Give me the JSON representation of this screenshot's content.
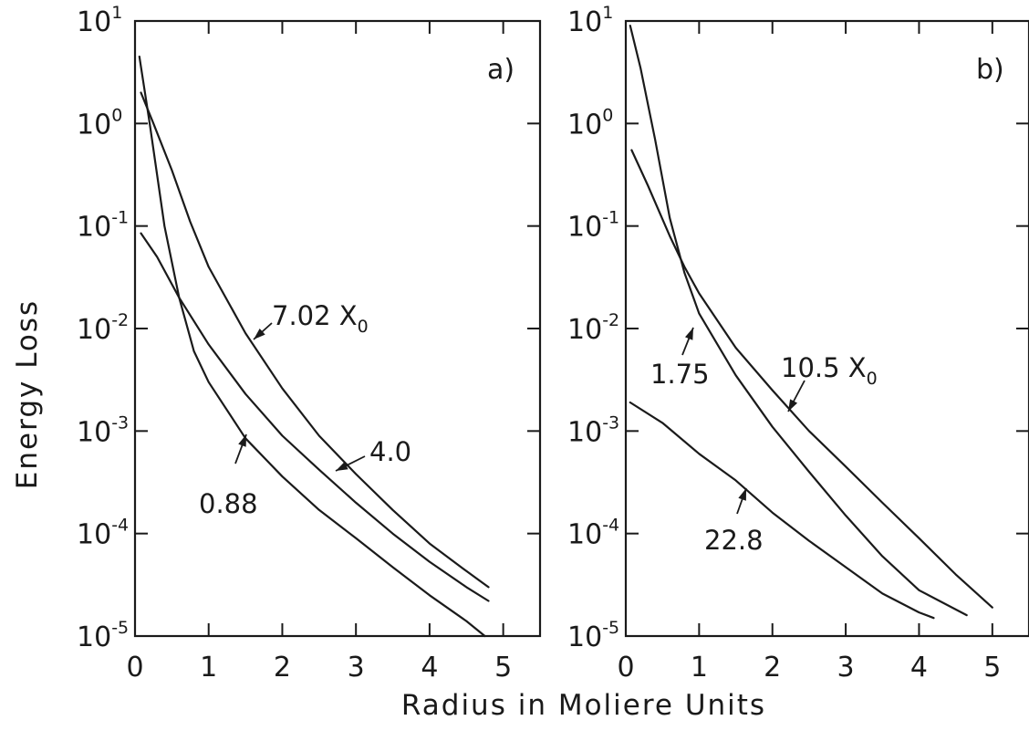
{
  "ylabel": "Energy Loss",
  "xlabel": "Radius in Moliere Units",
  "chart_data": [
    {
      "type": "line",
      "panel_label": "a)",
      "xlim": [
        0,
        5.5
      ],
      "ylim": [
        1e-05,
        10
      ],
      "yscale": "log",
      "xticks": [
        "0",
        "1",
        "2",
        "3",
        "4",
        "5"
      ],
      "yticks": [
        {
          "base": "10",
          "exp": "1"
        },
        {
          "base": "10",
          "exp": "0"
        },
        {
          "base": "10",
          "exp": "-1"
        },
        {
          "base": "10",
          "exp": "-2"
        },
        {
          "base": "10",
          "exp": "-3"
        },
        {
          "base": "10",
          "exp": "-4"
        },
        {
          "base": "10",
          "exp": "-5"
        }
      ],
      "grid": false,
      "series": [
        {
          "name": "7.02 X0",
          "label_main": "7.02 X",
          "label_sub": "0",
          "x": [
            0.08,
            0.25,
            0.5,
            0.75,
            1.0,
            1.5,
            2.0,
            2.5,
            3.0,
            3.5,
            4.0,
            4.5,
            4.8
          ],
          "y": [
            2.0,
            1.0,
            0.35,
            0.11,
            0.04,
            0.009,
            0.0026,
            0.0009,
            0.00038,
            0.00017,
            8e-05,
            4.3e-05,
            3e-05
          ]
        },
        {
          "name": "4.0",
          "label_main": "4.0",
          "label_sub": "",
          "x": [
            0.08,
            0.3,
            0.6,
            1.0,
            1.5,
            2.0,
            2.5,
            3.0,
            3.5,
            4.0,
            4.5,
            4.8
          ],
          "y": [
            0.085,
            0.05,
            0.02,
            0.007,
            0.0023,
            0.0009,
            0.00042,
            0.0002,
            0.0001,
            5.3e-05,
            3e-05,
            2.2e-05
          ]
        },
        {
          "name": "0.88",
          "label_main": "0.88",
          "label_sub": "",
          "x": [
            0.06,
            0.2,
            0.4,
            0.6,
            0.8,
            1.0,
            1.5,
            2.0,
            2.5,
            3.0,
            3.5,
            4.0,
            4.5,
            4.75
          ],
          "y": [
            4.5,
            1.0,
            0.1,
            0.02,
            0.006,
            0.003,
            0.00085,
            0.00036,
            0.00017,
            9e-05,
            4.7e-05,
            2.5e-05,
            1.4e-05,
            1e-05
          ]
        }
      ]
    },
    {
      "type": "line",
      "panel_label": "b)",
      "xlim": [
        0,
        5.5
      ],
      "ylim": [
        1e-05,
        10
      ],
      "yscale": "log",
      "xticks": [
        "0",
        "1",
        "2",
        "3",
        "4",
        "5"
      ],
      "yticks": [
        {
          "base": "10",
          "exp": "1"
        },
        {
          "base": "10",
          "exp": "0"
        },
        {
          "base": "10",
          "exp": "-1"
        },
        {
          "base": "10",
          "exp": "-2"
        },
        {
          "base": "10",
          "exp": "-3"
        },
        {
          "base": "10",
          "exp": "-4"
        },
        {
          "base": "10",
          "exp": "-5"
        }
      ],
      "grid": false,
      "series": [
        {
          "name": "10.5 X0",
          "label_main": "10.5 X",
          "label_sub": "0",
          "x": [
            0.08,
            0.3,
            0.6,
            0.8,
            1.0,
            1.5,
            2.0,
            2.5,
            3.0,
            3.5,
            4.0,
            4.5,
            5.0
          ],
          "y": [
            0.55,
            0.25,
            0.08,
            0.04,
            0.022,
            0.0065,
            0.0025,
            0.001,
            0.00045,
            0.0002,
            9e-05,
            4e-05,
            1.9e-05
          ]
        },
        {
          "name": "1.75",
          "label_main": "1.75",
          "label_sub": "",
          "x": [
            0.06,
            0.2,
            0.4,
            0.6,
            0.8,
            1.0,
            1.5,
            2.0,
            2.5,
            3.0,
            3.5,
            4.0,
            4.65
          ],
          "y": [
            9.0,
            3.5,
            0.7,
            0.12,
            0.035,
            0.014,
            0.0035,
            0.0011,
            0.0004,
            0.00015,
            6e-05,
            2.8e-05,
            1.6e-05
          ]
        },
        {
          "name": "22.8",
          "label_main": "22.8",
          "label_sub": "",
          "x": [
            0.06,
            0.5,
            1.0,
            1.5,
            2.0,
            2.5,
            3.0,
            3.5,
            4.0,
            4.2
          ],
          "y": [
            0.0019,
            0.0012,
            0.0006,
            0.00033,
            0.00016,
            8.5e-05,
            4.7e-05,
            2.6e-05,
            1.7e-05,
            1.5e-05
          ]
        }
      ]
    }
  ]
}
